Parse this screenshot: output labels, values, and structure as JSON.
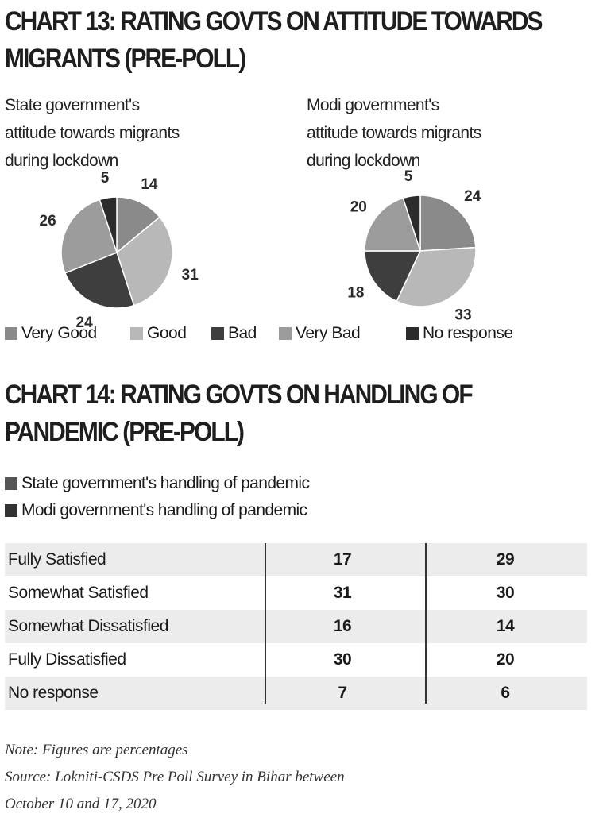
{
  "chart13": {
    "title_line1": "CHART 13: RATING GOVTS ON ATTITUDE TOWARDS",
    "title_line2": "MIGRANTS (PRE-POLL)"
  },
  "chart14": {
    "title_line1": "CHART 14: RATING GOVTS ON HANDLING OF",
    "title_line2": "PANDEMIC (PRE-POLL)"
  },
  "colors": {
    "very_good": "#8a8a8a",
    "good": "#b8b8b8",
    "bad": "#3e3e3e",
    "very_bad": "#9c9c9c",
    "no_response": "#2c2c2c",
    "state_bar": "#555555",
    "modi_bar": "#333333"
  },
  "chart_data": [
    {
      "type": "pie",
      "title": "State government's\nattitude towards migrants\nduring lockdown",
      "categories": [
        "Very Good",
        "Good",
        "Bad",
        "Very Bad",
        "No response"
      ],
      "values": [
        14,
        31,
        24,
        26,
        5
      ]
    },
    {
      "type": "pie",
      "title": "Modi government's\nattitude towards migrants\nduring lockdown",
      "categories": [
        "Very Good",
        "Good",
        "Bad",
        "Very Bad",
        "No response"
      ],
      "values": [
        24,
        33,
        18,
        20,
        5
      ]
    },
    {
      "type": "table",
      "title": "CHART 14: RATING GOVTS ON HANDLING OF PANDEMIC (PRE-POLL)",
      "categories": [
        "Fully Satisfied",
        "Somewhat Satisfied",
        "Somewhat Dissatisfied",
        "Fully Dissatisfied",
        "No response"
      ],
      "series": [
        {
          "name": "State government's handling of pandemic",
          "values": [
            17,
            31,
            16,
            30,
            7
          ]
        },
        {
          "name": "Modi government's handling of pandemic",
          "values": [
            29,
            30,
            14,
            20,
            6
          ]
        }
      ]
    }
  ],
  "legend": [
    "Very Good",
    "Good",
    "Bad",
    "Very Bad",
    "No response"
  ],
  "footer": {
    "note": "Note: Figures are percentages",
    "source_line1": "Source: Lokniti-CSDS Pre Poll Survey in Bihar between",
    "source_line2": "October 10 and 17, 2020"
  }
}
